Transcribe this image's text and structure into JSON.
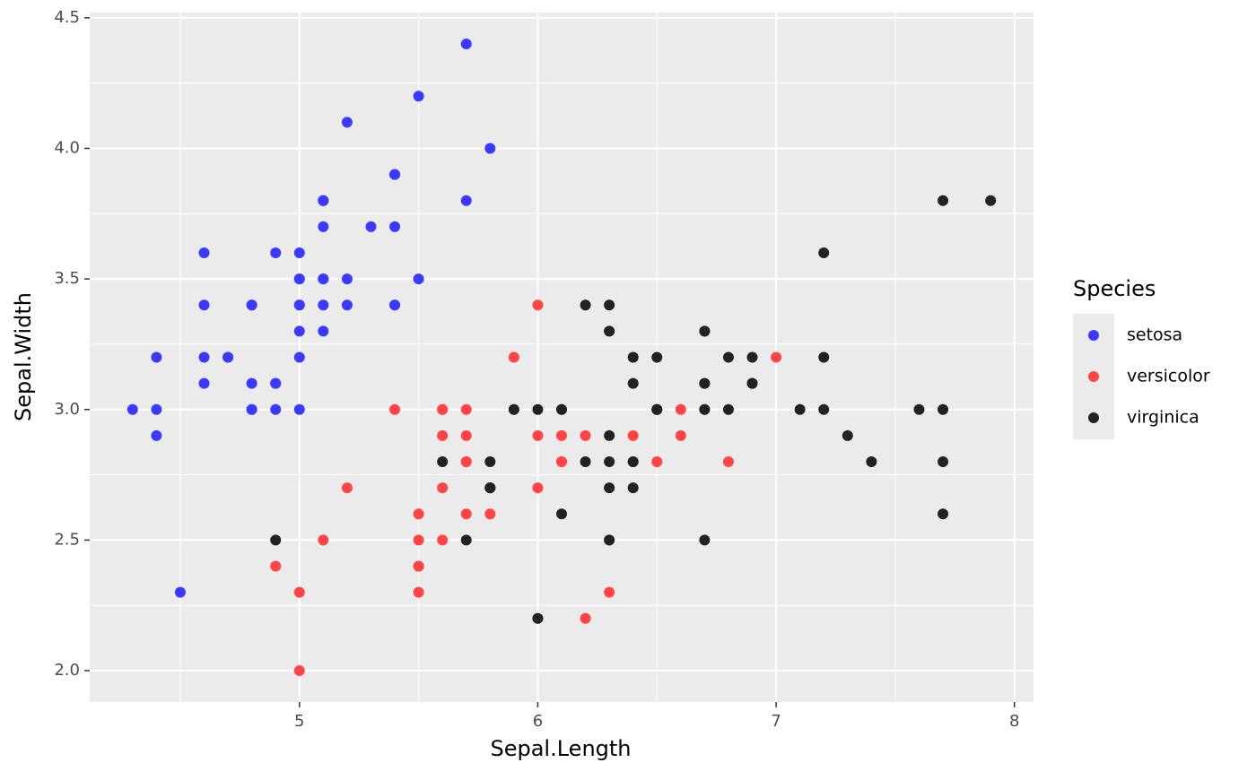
{
  "chart_data": {
    "type": "scatter",
    "x_label": "Sepal.Length",
    "y_label": "Sepal.Width",
    "legend_title": "Species",
    "legend_position": "right",
    "grid": true,
    "xlim": [
      4.12,
      8.08
    ],
    "xticks": [
      5,
      6,
      7,
      8
    ],
    "ylim": [
      1.88,
      4.52
    ],
    "yticks": [
      {
        "value": 2,
        "label": "2.0"
      },
      {
        "value": 2.5,
        "label": "2.5"
      },
      {
        "value": 3,
        "label": "3.0"
      },
      {
        "value": 3.5,
        "label": "3.5"
      },
      {
        "value": 4,
        "label": "4.0"
      },
      {
        "value": 4.5,
        "label": "4.5"
      }
    ],
    "series": [
      {
        "name": "setosa",
        "color": "#3a3aff",
        "x": [
          5.1,
          4.9,
          4.7,
          4.6,
          5.0,
          5.4,
          4.6,
          5.0,
          4.4,
          4.9,
          5.4,
          4.8,
          4.8,
          4.3,
          5.8,
          5.7,
          5.4,
          5.1,
          5.7,
          5.1,
          5.4,
          5.1,
          4.6,
          5.1,
          4.8,
          5.0,
          5.0,
          5.2,
          5.2,
          4.7,
          4.8,
          5.4,
          5.2,
          5.5,
          4.9,
          5.0,
          5.5,
          4.9,
          4.4,
          5.1,
          5.0,
          4.5,
          4.4,
          5.0,
          5.1,
          4.8,
          5.1,
          4.6,
          5.3,
          5.0
        ],
        "values": [
          3.5,
          3.0,
          3.2,
          3.1,
          3.6,
          3.9,
          3.4,
          3.4,
          2.9,
          3.1,
          3.7,
          3.4,
          3.0,
          3.0,
          4.0,
          4.4,
          3.9,
          3.5,
          3.8,
          3.8,
          3.4,
          3.7,
          3.6,
          3.3,
          3.4,
          3.0,
          3.4,
          3.5,
          3.4,
          3.2,
          3.1,
          3.4,
          4.1,
          4.2,
          3.1,
          3.2,
          3.5,
          3.6,
          3.0,
          3.4,
          3.5,
          2.3,
          3.2,
          3.5,
          3.8,
          3.0,
          3.8,
          3.2,
          3.7,
          3.3
        ]
      },
      {
        "name": "versicolor",
        "color": "#ff4444",
        "x": [
          7.0,
          6.4,
          6.9,
          5.5,
          6.5,
          5.7,
          6.3,
          4.9,
          6.6,
          5.2,
          5.0,
          5.9,
          6.0,
          6.1,
          5.6,
          6.7,
          5.6,
          5.8,
          6.2,
          5.6,
          5.9,
          6.1,
          6.3,
          6.1,
          6.4,
          6.6,
          6.8,
          6.7,
          6.0,
          5.7,
          5.5,
          5.5,
          5.8,
          6.0,
          5.4,
          6.0,
          6.7,
          6.3,
          5.6,
          5.5,
          5.5,
          6.1,
          5.8,
          5.0,
          5.6,
          5.7,
          5.7,
          6.2,
          5.1,
          5.7
        ],
        "values": [
          3.2,
          3.2,
          3.1,
          2.3,
          2.8,
          2.8,
          3.3,
          2.4,
          2.9,
          2.7,
          2.0,
          3.0,
          2.2,
          2.9,
          2.9,
          3.1,
          3.0,
          2.7,
          2.2,
          2.5,
          3.2,
          2.8,
          2.5,
          2.8,
          2.9,
          3.0,
          2.8,
          3.0,
          2.9,
          2.6,
          2.4,
          2.4,
          2.7,
          2.7,
          3.0,
          3.4,
          3.1,
          2.3,
          3.0,
          2.5,
          2.6,
          3.0,
          2.6,
          2.3,
          2.7,
          3.0,
          2.9,
          2.9,
          2.5,
          2.8
        ]
      },
      {
        "name": "virginica",
        "color": "#222222",
        "x": [
          6.3,
          5.8,
          7.1,
          6.3,
          6.5,
          7.6,
          4.9,
          7.3,
          6.7,
          7.2,
          6.5,
          6.4,
          6.8,
          5.7,
          5.8,
          6.4,
          6.5,
          7.7,
          7.7,
          6.0,
          6.9,
          5.6,
          7.7,
          6.3,
          6.7,
          7.2,
          6.2,
          6.1,
          6.4,
          7.2,
          7.4,
          7.9,
          6.4,
          6.3,
          6.1,
          7.7,
          6.3,
          6.4,
          6.0,
          6.9,
          6.7,
          6.9,
          5.8,
          6.8,
          6.7,
          6.7,
          6.3,
          6.5,
          6.2,
          5.9
        ],
        "values": [
          3.3,
          2.7,
          3.0,
          2.9,
          3.0,
          3.0,
          2.5,
          2.9,
          2.5,
          3.6,
          3.2,
          2.7,
          3.0,
          2.5,
          2.8,
          3.2,
          3.0,
          3.8,
          2.6,
          2.2,
          3.2,
          2.8,
          2.8,
          2.7,
          3.3,
          3.2,
          2.8,
          3.0,
          2.8,
          3.0,
          2.8,
          3.8,
          2.8,
          2.8,
          2.6,
          3.0,
          3.4,
          3.1,
          3.0,
          3.1,
          3.1,
          3.1,
          2.7,
          3.2,
          3.3,
          3.0,
          2.5,
          3.0,
          3.4,
          3.0
        ]
      }
    ]
  }
}
